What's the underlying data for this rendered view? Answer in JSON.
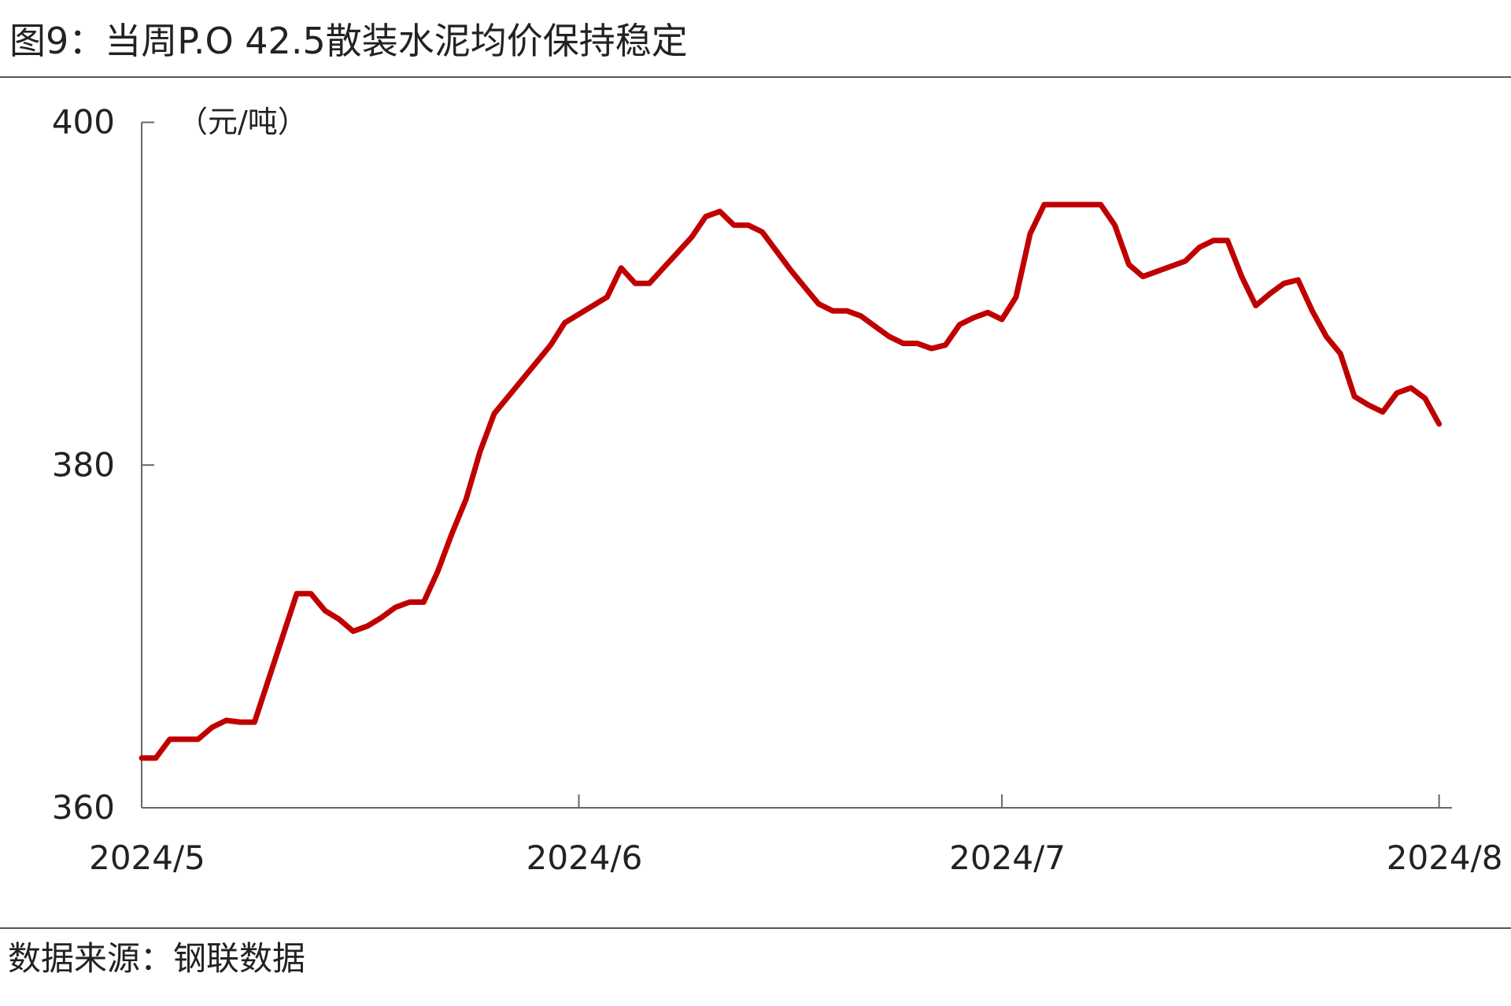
{
  "chart_data": {
    "type": "line",
    "title": "图9：当周P.O 42.5散装水泥均价保持稳定",
    "ylabel": "（元/吨）",
    "source": "数据来源：钢联数据",
    "categories": [
      "2024/5",
      null,
      null,
      null,
      null,
      null,
      null,
      null,
      null,
      null,
      null,
      null,
      null,
      null,
      null,
      null,
      null,
      null,
      null,
      null,
      null,
      null,
      null,
      null,
      null,
      null,
      null,
      null,
      null,
      null,
      null,
      "2024/6",
      null,
      null,
      null,
      null,
      null,
      null,
      null,
      null,
      null,
      null,
      null,
      null,
      null,
      null,
      null,
      null,
      null,
      null,
      null,
      null,
      null,
      null,
      null,
      null,
      null,
      null,
      null,
      null,
      null,
      "2024/7",
      null,
      null,
      null,
      null,
      null,
      null,
      null,
      null,
      null,
      null,
      null,
      null,
      null,
      null,
      null,
      null,
      null,
      null,
      null,
      null,
      null,
      null,
      null,
      null,
      null,
      null,
      null,
      null,
      null,
      null,
      "2024/8"
    ],
    "series": [
      {
        "name": "P.O 42.5散装水泥均价",
        "color": "#c00000",
        "values": [
          362.9,
          362.9,
          364.0,
          364.0,
          364.0,
          364.7,
          365.1,
          365.0,
          365.0,
          367.5,
          370.0,
          372.5,
          372.5,
          371.5,
          371.0,
          370.3,
          370.6,
          371.1,
          371.7,
          372.0,
          372.0,
          373.8,
          376.0,
          378.0,
          380.8,
          383.0,
          384.0,
          385.0,
          386.0,
          387.0,
          388.3,
          388.8,
          389.3,
          389.8,
          391.5,
          390.6,
          390.6,
          391.5,
          392.4,
          393.3,
          394.5,
          394.8,
          394.0,
          394.0,
          393.6,
          392.5,
          391.4,
          390.4,
          389.4,
          389.0,
          389.0,
          388.7,
          388.1,
          387.5,
          387.1,
          387.1,
          386.8,
          387.0,
          388.2,
          388.6,
          388.9,
          388.5,
          389.8,
          393.5,
          395.2,
          395.2,
          395.2,
          395.2,
          395.2,
          394.0,
          391.7,
          391.0,
          391.3,
          391.6,
          391.9,
          392.7,
          393.1,
          393.1,
          391.0,
          389.3,
          390.0,
          390.6,
          390.8,
          389.0,
          387.5,
          386.5,
          384.0,
          383.5,
          383.1,
          384.2,
          384.5,
          383.9,
          382.4
        ]
      }
    ],
    "ylim": [
      360,
      400
    ],
    "yticks": [
      360,
      380,
      400
    ],
    "grid": false
  }
}
